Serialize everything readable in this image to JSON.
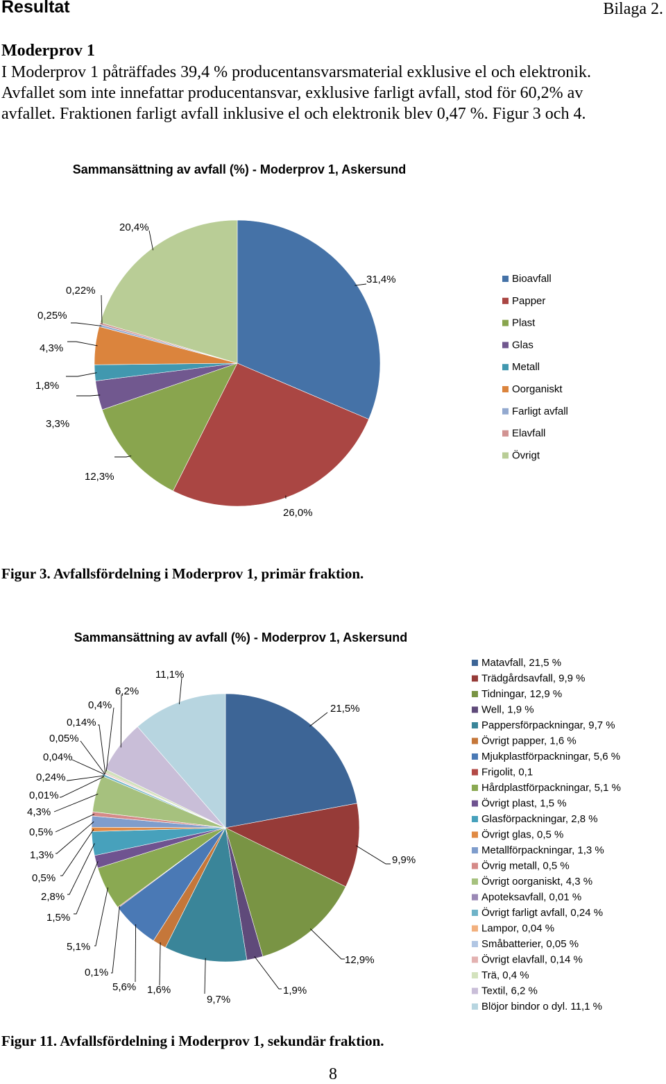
{
  "header": {
    "title": "Resultat",
    "appendix": "Bilaga 2."
  },
  "section": {
    "heading": "Moderprov 1",
    "paragraph_lines": [
      "I Moderprov 1 påträffades 39,4 % producentansvarsmaterial exklusive el och elektronik.",
      "Avfallet som inte innefattar producentansvar, exklusive farligt avfall, stod för 60,2% av",
      "avfallet. Fraktionen farligt avfall inklusive el och elektronik blev 0,47 %. Figur 3 och 4."
    ]
  },
  "figure3": {
    "caption": "Figur 3. Avfallsfördelning i Moderprov 1, primär fraktion."
  },
  "figure11": {
    "caption": "Figur 11. Avfallsfördelning i Moderprov 1, sekundär fraktion."
  },
  "page_number": "8",
  "chart_data": [
    {
      "type": "pie",
      "title": "Sammansättning av avfall (%) - Moderprov 1, Askersund",
      "categories": [
        "Bioavfall",
        "Papper",
        "Plast",
        "Glas",
        "Metall",
        "Oorganiskt",
        "Farligt avfall",
        "Elavfall",
        "Övrigt"
      ],
      "values": [
        31.4,
        26.0,
        12.3,
        3.3,
        1.8,
        4.3,
        0.25,
        0.22,
        20.4
      ],
      "data_labels": [
        "31,4%",
        "26,0%",
        "12,3%",
        "3,3%",
        "1,8%",
        "4,3%",
        "0,25%",
        "0,22%",
        "20,4%"
      ],
      "colors": [
        "#4572a7",
        "#aa4643",
        "#89a54e",
        "#71588f",
        "#4198af",
        "#db843d",
        "#93a9cf",
        "#d19392",
        "#b9cd96"
      ],
      "legend_position": "right"
    },
    {
      "type": "pie",
      "title": "Sammansättning av avfall (%) - Moderprov  1, Askersund",
      "categories": [
        "Matavfall",
        "Trädgårdsavfall",
        "Tidningar",
        "Well",
        "Pappersförpackningar",
        "Övrigt papper",
        "Mjukplastförpackningar",
        "Frigolit",
        "Hårdplastförpackningar",
        "Övrigt plast",
        "Glasförpackningar",
        "Övrigt glas",
        "Metallförpackningar",
        "Övrig metall",
        "Övrigt oorganiskt",
        "Apoteksavfall",
        "Övrigt farligt avfall",
        "Lampor",
        "Småbatterier",
        "Övrigt elavfall",
        "Trä",
        "Textil",
        "Blöjor bindor o dyl."
      ],
      "values": [
        21.5,
        9.9,
        12.9,
        1.9,
        9.7,
        1.6,
        5.6,
        0.1,
        5.1,
        1.5,
        2.8,
        0.5,
        1.3,
        0.5,
        4.3,
        0.01,
        0.24,
        0.04,
        0.05,
        0.14,
        0.4,
        6.2,
        11.1
      ],
      "data_labels": [
        "21,5%",
        "9,9%",
        "12,9%",
        "1,9%",
        "9,7%",
        "1,6%",
        "5,6%",
        "0,1%",
        "5,1%",
        "1,5%",
        "2,8%",
        "0,5%",
        "1,3%",
        "0,5%",
        "4,3%",
        "0,01%",
        "0,24%",
        "0,04%",
        "0,05%",
        "0,14%",
        "0,4%",
        "6,2%",
        "11,1%"
      ],
      "legend_entries": [
        "Matavfall, 21,5 %",
        "Trädgårdsavfall, 9,9 %",
        "Tidningar, 12,9 %",
        "Well, 1,9 %",
        "Pappersförpackningar, 9,7 %",
        "Övrigt papper, 1,6 %",
        "Mjukplastförpackningar, 5,6 %",
        "Frigolit, 0,1",
        "Hårdplastförpackningar, 5,1 %",
        "Övrigt plast, 1,5 %",
        "Glasförpackningar, 2,8 %",
        "Övrigt glas, 0,5 %",
        "Metallförpackningar, 1,3 %",
        "Övrig metall, 0,5 %",
        "Övrigt oorganiskt, 4,3 %",
        "Apoteksavfall, 0,01 %",
        "Övrigt farligt avfall, 0,24 %",
        "Lampor, 0,04 %",
        "Småbatterier, 0,05 %",
        "Övrigt elavfall, 0,14 %",
        "Trä, 0,4 %",
        "Textil, 6,2 %",
        "Blöjor bindor o dyl. 11,1 %"
      ],
      "colors": [
        "#3d6596",
        "#963b38",
        "#799444",
        "#5f4a7a",
        "#3a8599",
        "#c5773a",
        "#4a79b5",
        "#b34a46",
        "#8aa952",
        "#6f5390",
        "#47a1bc",
        "#e08a44",
        "#7f9dcc",
        "#d58a88",
        "#a6c17e",
        "#9a88b5",
        "#6fb3c8",
        "#f2b07e",
        "#b1c6e3",
        "#e3b2b1",
        "#d3e2bd",
        "#c9bed8",
        "#b7d5e0"
      ],
      "legend_position": "right"
    }
  ]
}
